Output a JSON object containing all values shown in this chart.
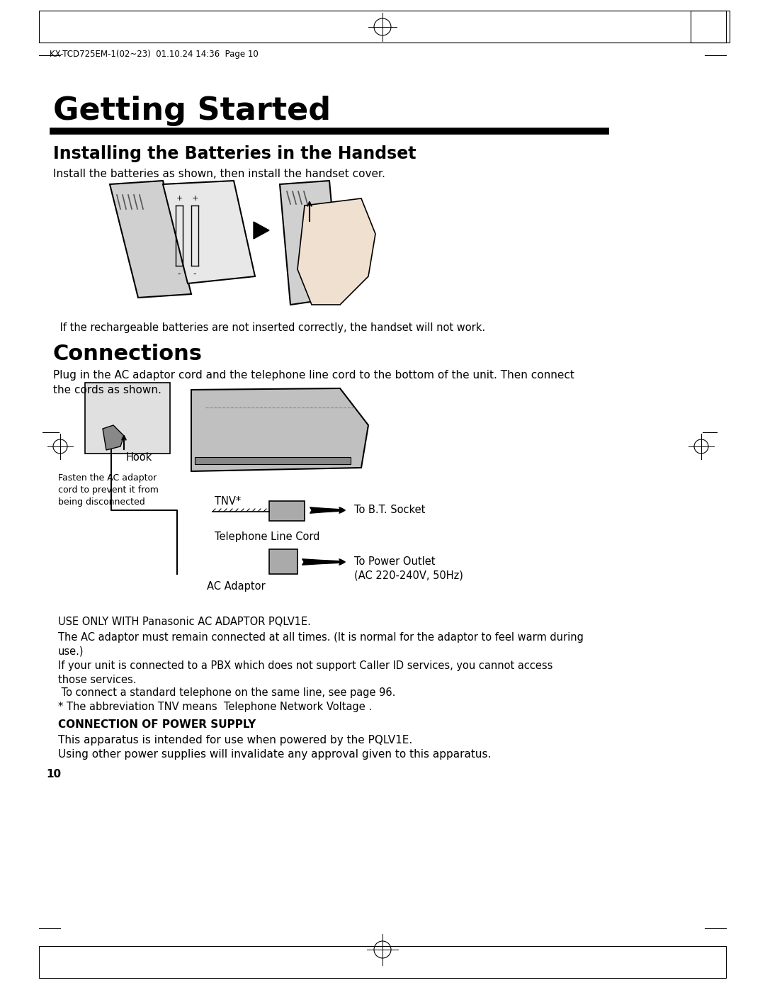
{
  "page_header": "KX-TCD725EM-1(02~23)  01.10.24 14:36  Page 10",
  "title": "Getting Started",
  "section1_title": "Installing the Batteries in the Handset",
  "section1_text": "Install the batteries as shown, then install the handset cover.",
  "section1_note": " If the rechargeable batteries are not inserted correctly, the handset will not work.",
  "section2_title": "Connections",
  "section2_text": "Plug in the AC adaptor cord and the telephone line cord to the bottom of the unit. Then connect\nthe cords as shown.",
  "hook_label": "Hook",
  "fasten_label": "Fasten the AC adaptor\ncord to prevent it from\nbeing disconnected",
  "tnv_label": "TNV*",
  "tel_cord_label": "Telephone Line Cord",
  "bt_socket_label": "To B.T. Socket",
  "ac_adaptor_label": "AC Adaptor",
  "power_outlet_label": "To Power Outlet\n(AC 220-240V, 50Hz)",
  "note1": "USE ONLY WITH Panasonic AC ADAPTOR PQLV1E.",
  "note2": "The AC adaptor must remain connected at all times. (It is normal for the adaptor to feel warm during\nuse.)",
  "note3": "If your unit is connected to a PBX which does not support Caller ID services, you cannot access\nthose services.",
  "note4": " To connect a standard telephone on the same line, see page 96.",
  "note5": "* The abbreviation TNV means  Telephone Network Voltage .",
  "section3_title": "CONNECTION OF POWER SUPPLY",
  "section3_text1": "This apparatus is intended for use when powered by the PQLV1E.",
  "section3_text2": "Using other power supplies will invalidate any approval given to this apparatus.",
  "page_number": "10",
  "bg_color": "#ffffff",
  "text_color": "#000000",
  "title_fontsize": 28,
  "section_title_fontsize": 17,
  "body_fontsize": 11,
  "note_fontsize": 10.5,
  "header_fontsize": 8.5
}
